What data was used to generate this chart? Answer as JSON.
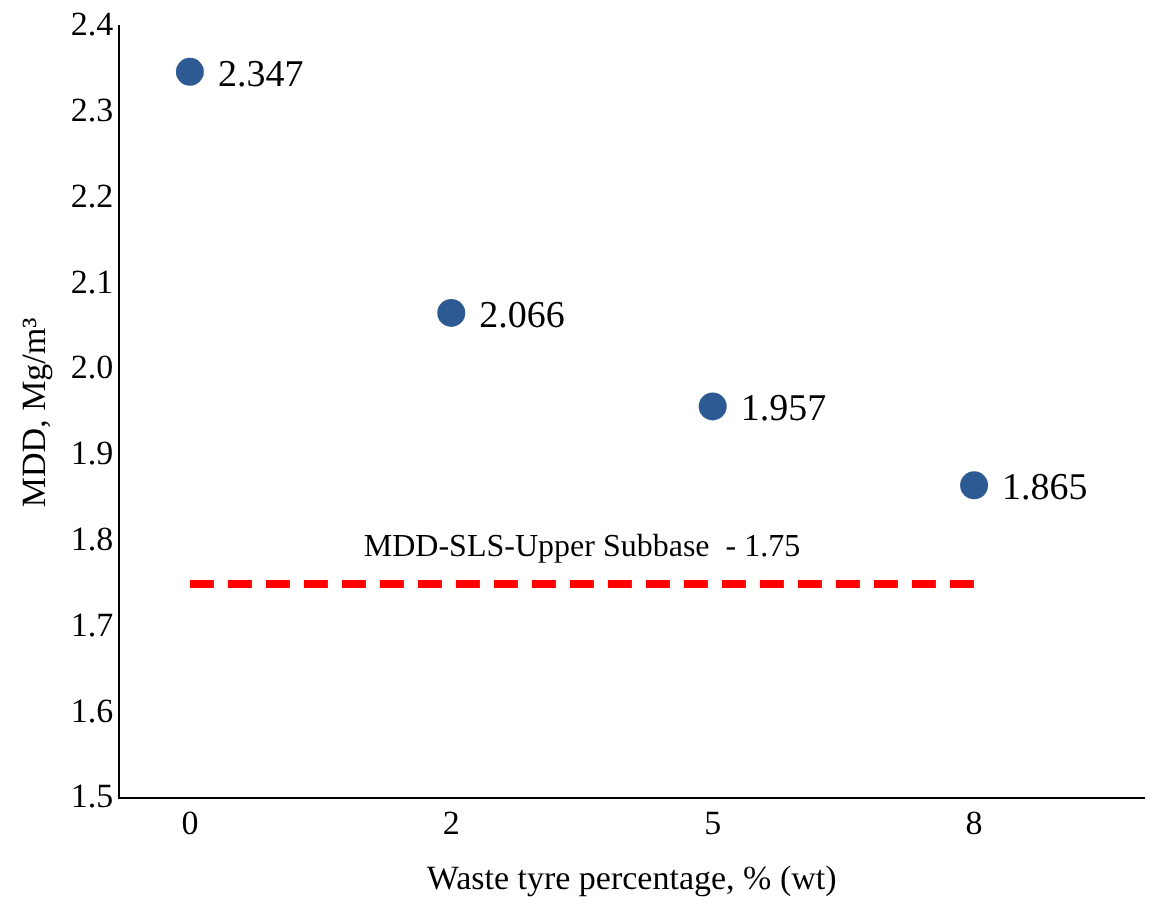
{
  "chart_data": {
    "type": "scatter",
    "xlabel": "Waste tyre percentage, % (wt)",
    "ylabel": "MDD, Mg/m³",
    "categories": [
      "0",
      "2",
      "5",
      "8"
    ],
    "series": [
      {
        "color": "#2e5a94",
        "values": [
          2.347,
          2.066,
          1.957,
          1.865
        ],
        "value_labels": [
          "2.347",
          "2.066",
          "1.957",
          "1.865"
        ],
        "marker": "circle"
      },
      {
        "type": "line",
        "name": "MDD-SLS-Upper Subbase  - 1.75",
        "color": "#ff0000",
        "values": [
          1.75,
          1.75,
          1.75,
          1.75
        ],
        "line_style": "dashed",
        "marker": "none"
      }
    ],
    "ylim": [
      1.5,
      2.4
    ],
    "yticks": [
      1.5,
      1.6,
      1.7,
      1.8,
      1.9,
      {
        "value": 2.0,
        "label": "2.0"
      },
      2.1,
      2.2,
      2.3,
      2.4
    ],
    "grid": false,
    "legend": false
  }
}
